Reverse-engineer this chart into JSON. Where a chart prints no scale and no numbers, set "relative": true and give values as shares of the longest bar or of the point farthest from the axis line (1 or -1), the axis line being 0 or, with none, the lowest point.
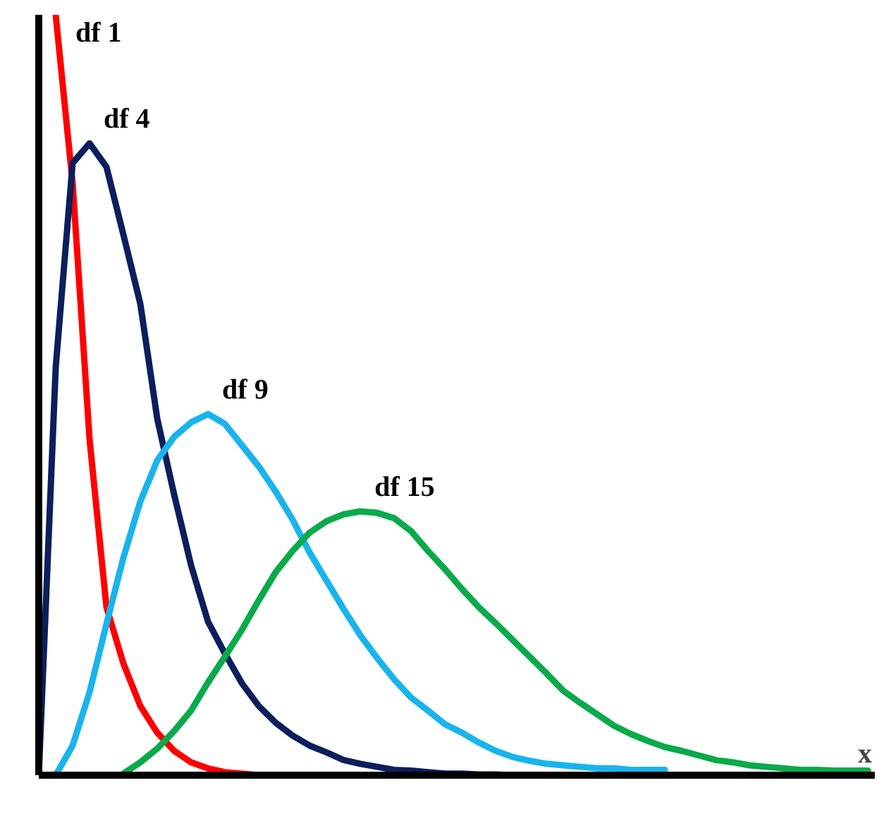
{
  "chart_data": {
    "type": "line",
    "relative": true,
    "xlabel": "x",
    "grid": false,
    "legend": false,
    "marker": "none",
    "line_style": "solid",
    "categories": [
      null,
      null,
      null,
      null,
      null,
      null,
      null,
      null,
      null,
      null,
      null,
      null,
      null,
      null,
      null,
      null,
      null,
      null,
      null,
      null,
      null,
      null,
      null,
      null,
      null,
      null,
      null,
      null,
      null,
      null,
      null,
      null,
      null,
      null,
      null,
      null,
      null,
      null,
      null,
      null,
      null,
      null,
      null,
      null,
      null,
      null,
      null,
      null,
      null,
      null
    ],
    "series": [
      {
        "name": "df 1",
        "color": "#ff0000",
        "values": [
          null,
          1.0,
          0.779,
          0.442,
          0.221,
          0.147,
          0.091,
          0.056,
          0.032,
          0.017,
          0.009,
          0.004,
          0.002,
          0,
          0,
          null,
          null,
          null,
          null,
          null,
          null,
          null,
          null,
          null,
          null,
          null,
          null,
          null,
          null,
          null,
          null,
          null,
          null,
          null,
          null,
          null,
          null,
          null,
          null,
          null,
          null,
          null,
          null,
          null,
          null,
          null,
          null,
          null,
          null,
          null
        ]
      },
      {
        "name": "df 4",
        "color": "#0a1f5c",
        "values": [
          0,
          0.536,
          0.805,
          0.831,
          0.8,
          0.711,
          0.62,
          0.469,
          0.369,
          0.276,
          0.202,
          0.16,
          0.121,
          0.091,
          0.069,
          0.052,
          0.039,
          0.03,
          0.02,
          0.015,
          0.011,
          0.007,
          0.006,
          0.004,
          0.002,
          0.002,
          0.001,
          0.001,
          0,
          null,
          null,
          null,
          null,
          null,
          null,
          null,
          null,
          null,
          null,
          null,
          null,
          null,
          null,
          null,
          null,
          null,
          null,
          null,
          null,
          null
        ]
      },
      {
        "name": "df 9",
        "color": "#19b4ec",
        "values": [
          null,
          0,
          0.039,
          0.109,
          0.199,
          0.286,
          0.36,
          0.414,
          0.445,
          0.464,
          0.475,
          0.462,
          0.434,
          0.406,
          0.373,
          0.336,
          0.293,
          0.256,
          0.219,
          0.184,
          0.154,
          0.126,
          0.102,
          0.085,
          0.067,
          0.056,
          0.043,
          0.032,
          0.024,
          0.019,
          0.015,
          0.013,
          0.011,
          0.009,
          0.009,
          0.007,
          0.007,
          0.007,
          null,
          null,
          null,
          null,
          null,
          null,
          null,
          null,
          null,
          null,
          null,
          null
        ]
      },
      {
        "name": "df 15",
        "color": "#0aaa4a",
        "values": [
          null,
          null,
          null,
          null,
          null,
          0.002,
          0.017,
          0.035,
          0.058,
          0.085,
          0.122,
          0.156,
          0.191,
          0.23,
          0.267,
          0.295,
          0.319,
          0.334,
          0.343,
          0.347,
          0.345,
          0.338,
          0.321,
          0.295,
          0.271,
          0.245,
          0.221,
          0.2,
          0.178,
          0.156,
          0.134,
          0.111,
          0.095,
          0.08,
          0.065,
          0.054,
          0.045,
          0.037,
          0.032,
          0.026,
          0.02,
          0.017,
          0.013,
          0.011,
          0.009,
          0.007,
          0.007,
          0.006,
          0.006,
          0.006
        ]
      }
    ]
  }
}
